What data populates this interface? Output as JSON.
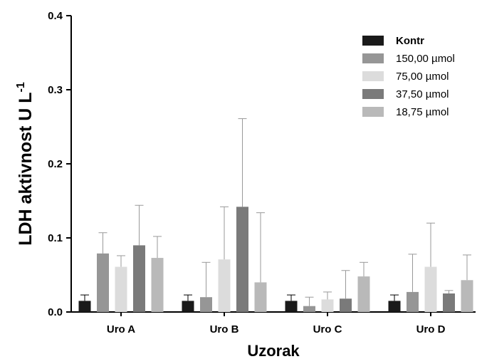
{
  "chart_data": {
    "type": "bar",
    "ylabel": "LDH aktivnost U L",
    "ylabel_superscript": "-1",
    "xlabel": "Uzorak",
    "ylim": [
      0,
      0.4
    ],
    "yticks": [
      "0.0",
      "0.1",
      "0.2",
      "0.3",
      "0.4"
    ],
    "categories": [
      "Uro A",
      "Uro B",
      "Uro C",
      "Uro D"
    ],
    "grid": false,
    "legend_position": "top-right",
    "error_bars": "upper only",
    "series": [
      {
        "name": "Kontr",
        "color": "#1a1a1a",
        "values": [
          0.015,
          0.015,
          0.015,
          0.015
        ],
        "errors": [
          0.008,
          0.008,
          0.008,
          0.008
        ]
      },
      {
        "name": "150,00  µmol",
        "color": "#969696",
        "values": [
          0.079,
          0.02,
          0.008,
          0.027
        ],
        "errors": [
          0.028,
          0.047,
          0.012,
          0.051
        ]
      },
      {
        "name": "75,00  µmol",
        "color": "#dcdcdc",
        "values": [
          0.061,
          0.071,
          0.017,
          0.061
        ],
        "errors": [
          0.015,
          0.071,
          0.01,
          0.059
        ]
      },
      {
        "name": "37,50  µmol",
        "color": "#7a7a7a",
        "values": [
          0.09,
          0.142,
          0.018,
          0.025
        ],
        "errors": [
          0.054,
          0.119,
          0.038,
          0.004
        ]
      },
      {
        "name": "18,75 µmol",
        "color": "#b9b9b9",
        "values": [
          0.073,
          0.04,
          0.048,
          0.043
        ],
        "errors": [
          0.029,
          0.094,
          0.019,
          0.034
        ]
      }
    ]
  }
}
